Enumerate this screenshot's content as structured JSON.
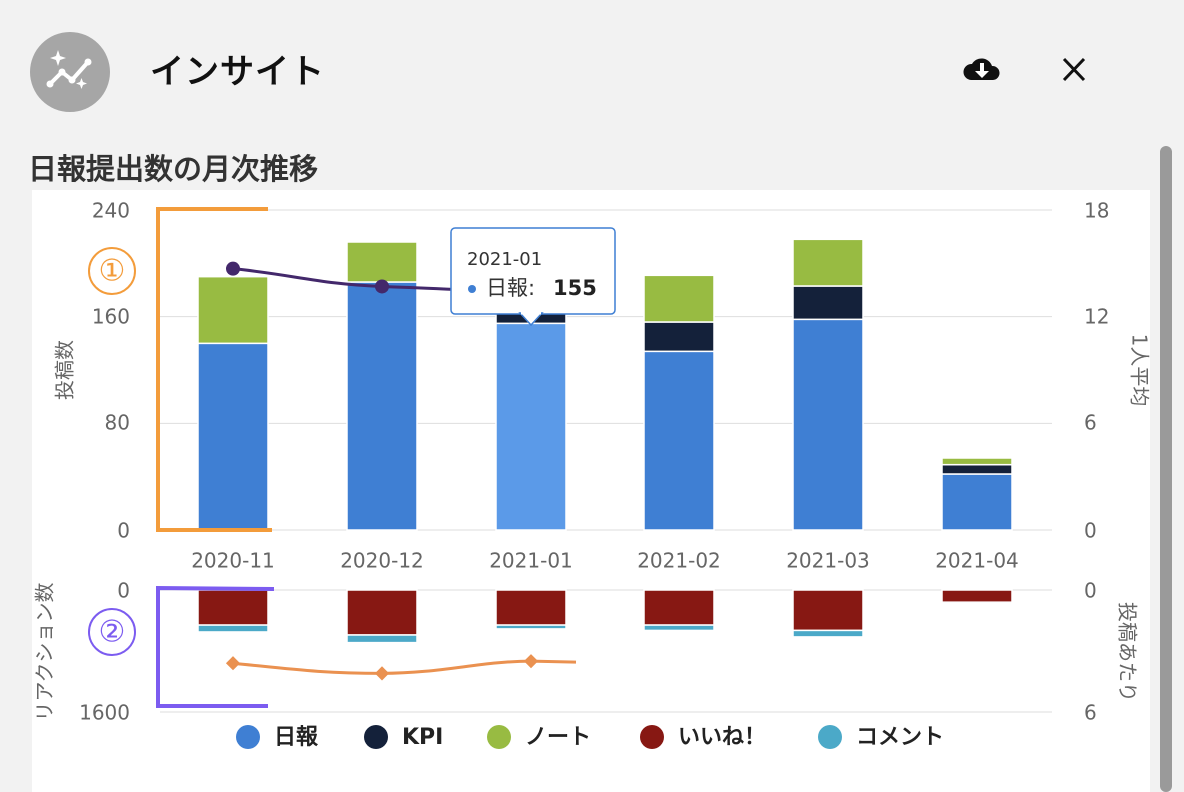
{
  "header": {
    "title": "インサイト",
    "avatar_icon": "insight-sparkle-chart-icon",
    "download_icon": "cloud-download-icon",
    "close_icon": "close-icon"
  },
  "section": {
    "title": "日報提出数の月次推移"
  },
  "annotations": {
    "marker1": "①",
    "marker2": "②"
  },
  "colors": {
    "nippo": "#3f7fd3",
    "nippo_hover": "#5b9ae8",
    "kpi": "#14213a",
    "note": "#98bb42",
    "like": "#871813",
    "comment": "#4ba9c8",
    "avg_line": "#43286b",
    "reaction_line": "#ea9150",
    "bracket1": "#f39c3b",
    "bracket2": "#7c5cf0"
  },
  "chart_data": [
    {
      "type": "bar",
      "stacked": true,
      "categories": [
        "2020-11",
        "2020-12",
        "2021-01",
        "2021-02",
        "2021-03",
        "2021-04"
      ],
      "series": [
        {
          "name": "日報",
          "values": [
            140,
            186,
            155,
            134,
            158,
            42
          ]
        },
        {
          "name": "KPI",
          "values": [
            0,
            0,
            10,
            22,
            25,
            7
          ]
        },
        {
          "name": "ノート",
          "values": [
            50,
            30,
            25,
            35,
            35,
            5
          ]
        }
      ],
      "line": {
        "axis": "right",
        "values": [
          14.7,
          13.7,
          13.4
        ]
      },
      "ylabel": "投稿数",
      "y2label": "1人平均",
      "yticks": [
        "240",
        "160",
        "80",
        "0"
      ],
      "y2ticks": [
        "18",
        "12",
        "6",
        "0"
      ],
      "ylim": [
        0,
        240
      ],
      "y2lim": [
        0,
        18
      ],
      "grid": true,
      "tooltip": {
        "category": "2021-01",
        "series": "日報",
        "label": "日報: ",
        "value": "155"
      }
    },
    {
      "type": "bar",
      "stacked": true,
      "inverted": true,
      "categories": [
        "2020-11",
        "2020-12",
        "2021-01",
        "2021-02",
        "2021-03",
        "2021-04"
      ],
      "series": [
        {
          "name": "いいね！",
          "values": [
            460,
            590,
            460,
            460,
            530,
            160
          ]
        },
        {
          "name": "コメント",
          "values": [
            90,
            100,
            50,
            70,
            85,
            20
          ]
        }
      ],
      "line": {
        "axis": "right",
        "values": [
          3.6,
          4.1,
          3.5
        ]
      },
      "ylabel": "リアクション数",
      "y2label": "投稿あたり",
      "yticks": [
        "0",
        "1600"
      ],
      "y2ticks": [
        "0",
        "6"
      ],
      "ylim": [
        0,
        1600
      ],
      "y2lim": [
        0,
        6
      ]
    }
  ],
  "legend": [
    {
      "label": "日報",
      "color": "#3f7fd3"
    },
    {
      "label": "KPI",
      "color": "#14213a"
    },
    {
      "label": "ノート",
      "color": "#98bb42"
    },
    {
      "label": "いいね！",
      "color": "#871813"
    },
    {
      "label": "コメント",
      "color": "#4ba9c8"
    }
  ]
}
